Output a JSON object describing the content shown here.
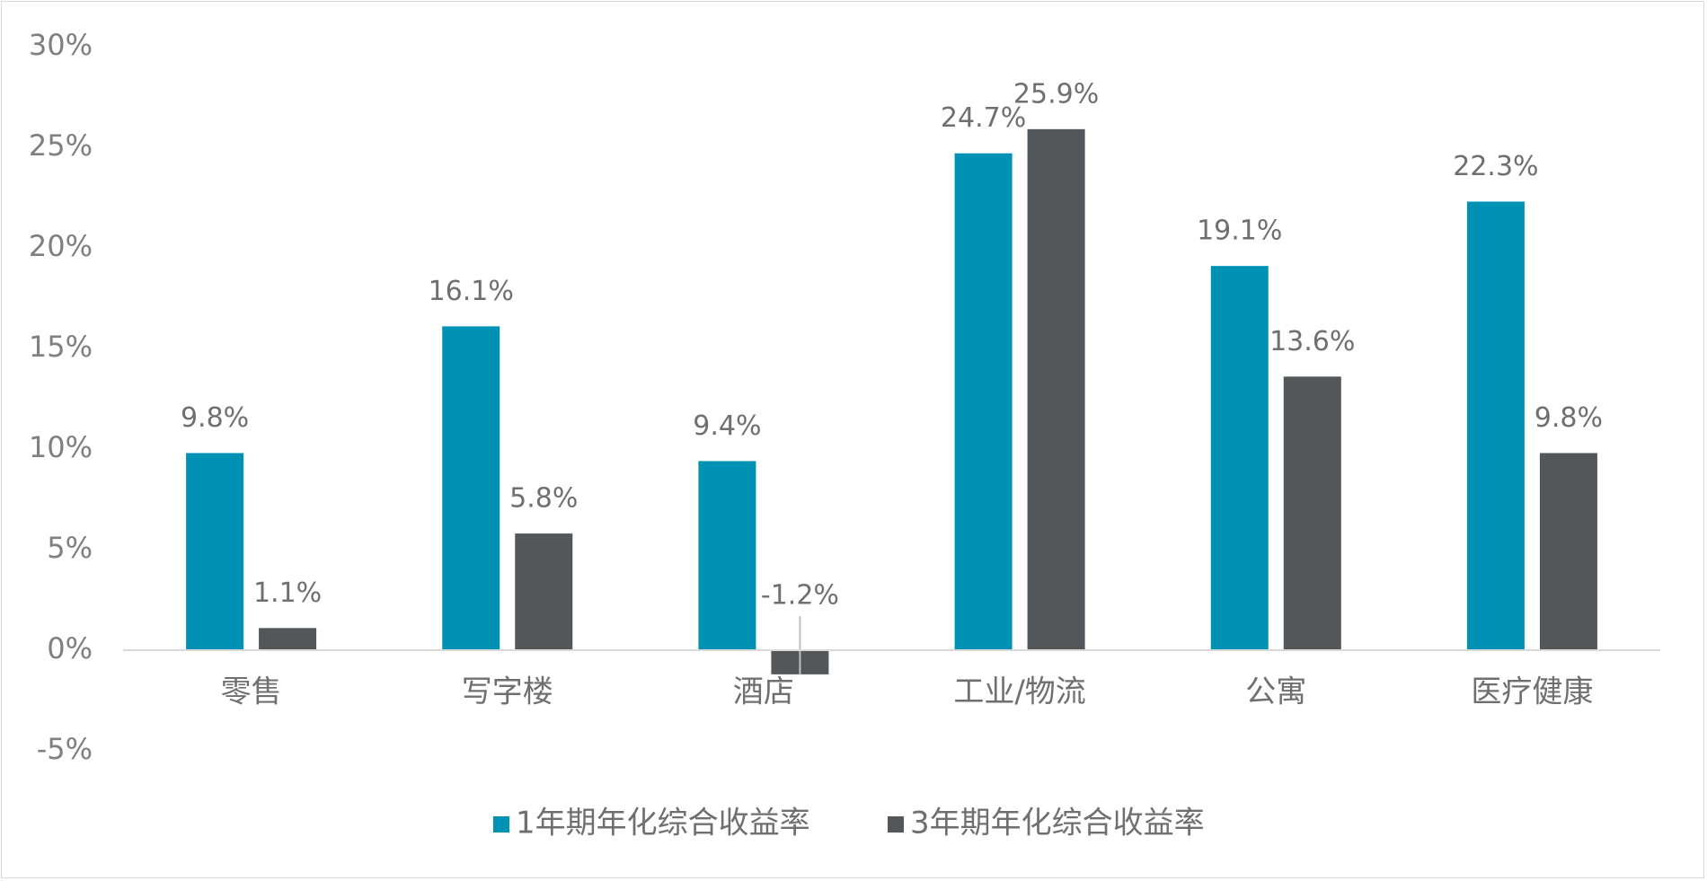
{
  "chart_data": {
    "type": "bar",
    "categories": [
      "零售",
      "写字楼",
      "酒店",
      "工业/物流",
      "公寓",
      "医疗健康"
    ],
    "series": [
      {
        "name": "1年期年化综合收益率",
        "values": [
          9.8,
          16.1,
          9.4,
          24.7,
          19.1,
          22.3
        ],
        "labels": [
          "9.8%",
          "16.1%",
          "9.4%",
          "24.7%",
          "19.1%",
          "22.3%"
        ],
        "color": "#0092B4"
      },
      {
        "name": "3年期年化综合收益率",
        "values": [
          1.1,
          5.8,
          -1.2,
          25.9,
          13.6,
          9.8
        ],
        "labels": [
          "1.1%",
          "5.8%",
          "-1.2%",
          "25.9%",
          "13.6%",
          "9.8%"
        ],
        "color": "#53575A"
      }
    ],
    "ylim": [
      -5,
      30
    ],
    "yticks": [
      "30%",
      "25%",
      "20%",
      "15%",
      "10%",
      "5%",
      "0%",
      "-5%"
    ],
    "ytick_values": [
      30,
      25,
      20,
      15,
      10,
      5,
      0,
      -5
    ],
    "grid": false,
    "legend": "bottom"
  }
}
